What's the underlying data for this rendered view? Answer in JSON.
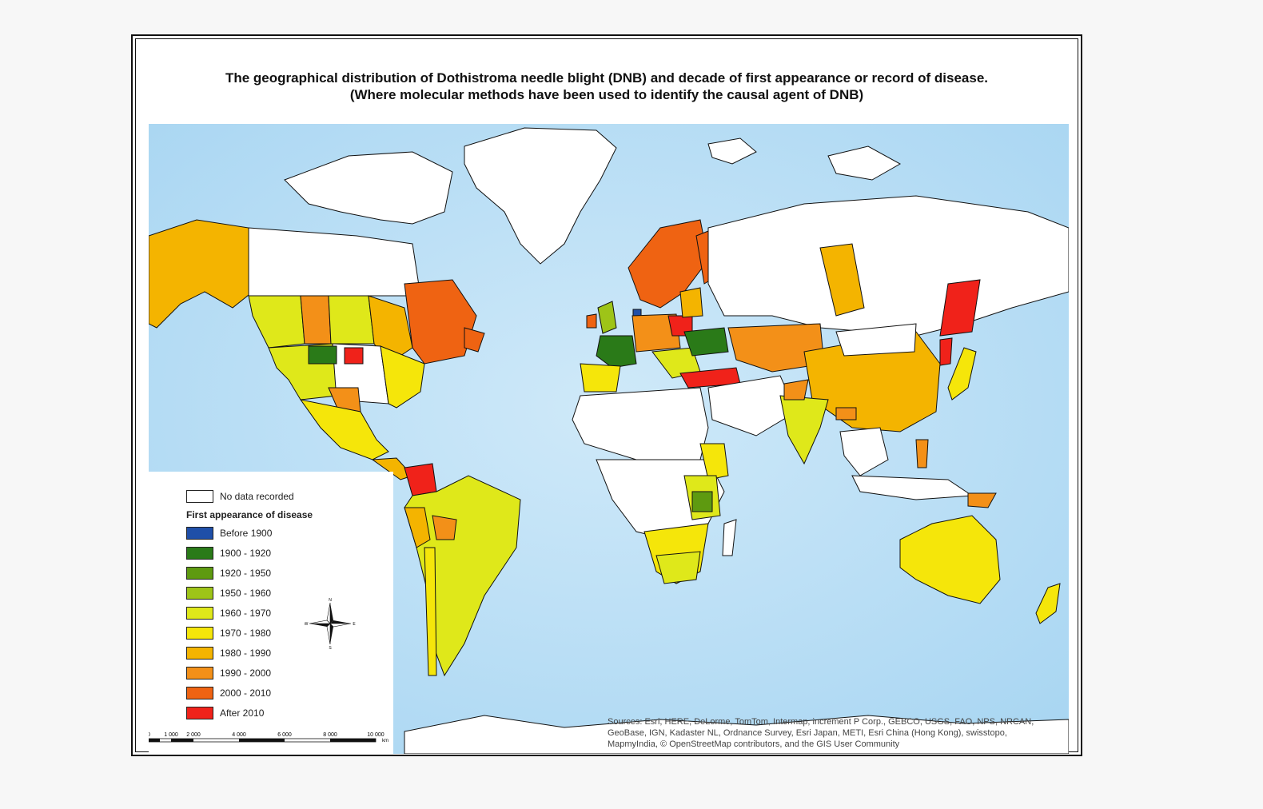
{
  "title": {
    "line1": "The geographical distribution of Dothistroma needle blight (DNB) and decade of first appearance or record of disease.",
    "line2": "(Where molecular methods have been used to identify the causal agent of DNB)"
  },
  "colors": {
    "ocean": "#bfe0f5",
    "ocean_light": "#d8eefb",
    "land_nodata": "#ffffff",
    "border": "#111111"
  },
  "legend": {
    "no_data_label": "No data recorded",
    "heading": "First appearance of disease",
    "items": [
      {
        "label": "Before 1900",
        "color": "#1f4fa8"
      },
      {
        "label": "1900 - 1920",
        "color": "#2a7a18"
      },
      {
        "label": "1920 - 1950",
        "color": "#5e9a10"
      },
      {
        "label": "1950 - 1960",
        "color": "#9ec418"
      },
      {
        "label": "1960 - 1970",
        "color": "#dfe81a"
      },
      {
        "label": "1970 - 1980",
        "color": "#f5e60a"
      },
      {
        "label": "1980 - 1990",
        "color": "#f4b400"
      },
      {
        "label": "1990 - 2000",
        "color": "#f39018"
      },
      {
        "label": "2000 - 2010",
        "color": "#ef6312"
      },
      {
        "label": "After 2010",
        "color": "#f0221a"
      }
    ]
  },
  "compass": {
    "n": "N",
    "s": "S",
    "e": "E",
    "w": "W"
  },
  "scalebar": {
    "ticks": [
      "0",
      "1 000",
      "2 000",
      "4 000",
      "6 000",
      "8 000",
      "10 000"
    ],
    "unit": "km"
  },
  "sources": "Sources: Esri, HERE, DeLorme, TomTom, Intermap, increment P Corp., GEBCO, USGS, FAO, NPS, NRCAN, GeoBase, IGN, Kadaster NL, Ordnance Survey, Esri Japan, METI, Esri China (Hong Kong), swisstopo, MapmyIndia, © OpenStreetMap contributors, and the GIS User Community"
}
